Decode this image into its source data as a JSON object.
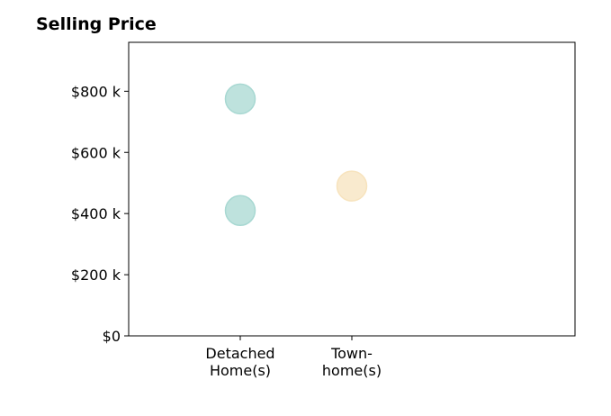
{
  "chart_data": {
    "type": "scatter",
    "title": "Selling Price",
    "xlabel": "",
    "ylabel": "",
    "categories": [
      [
        "Detached",
        "Home(s)"
      ],
      [
        "Town-",
        "home(s)"
      ]
    ],
    "ylim": [
      0,
      960000
    ],
    "yticks": [
      {
        "value": 0,
        "label": "$0"
      },
      {
        "value": 200000,
        "label": "$200 k"
      },
      {
        "value": 400000,
        "label": "$400 k"
      },
      {
        "value": 600000,
        "label": "$600 k"
      },
      {
        "value": 800000,
        "label": "$800 k"
      }
    ],
    "points": [
      {
        "category": 0,
        "value": 775000,
        "color": "#a8d8d2"
      },
      {
        "category": 0,
        "value": 410000,
        "color": "#a8d8d2"
      },
      {
        "category": 1,
        "value": 490000,
        "color": "#f7e3bd"
      }
    ],
    "grid": false,
    "legend": "none"
  }
}
